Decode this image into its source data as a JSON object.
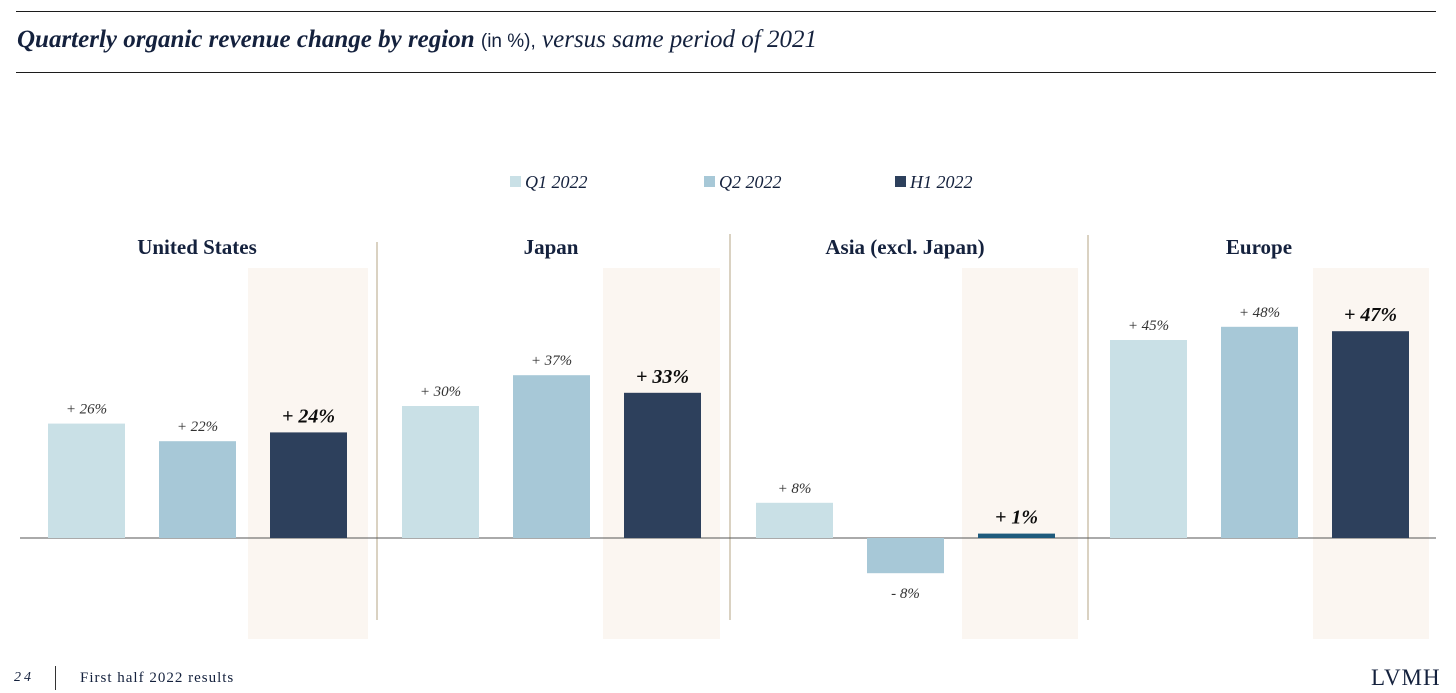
{
  "header": {
    "title_main": "Quarterly organic revenue change by region",
    "title_unit": "(in %),",
    "title_sub": "versus same period of 2021"
  },
  "footer": {
    "page_number": "24",
    "doc_title": "First half 2022 results",
    "brand": "LVMH"
  },
  "colors": {
    "q1": "#c9e0e6",
    "q2": "#a7c8d7",
    "h1": "#2d405c",
    "h1_small": "#1e5a7c",
    "highlight": "#fbf6f1",
    "divider": "#cdc3ae",
    "baseline": "#555555"
  },
  "chart_data": {
    "type": "bar",
    "series": [
      {
        "name": "Q1 2022",
        "key": "q1"
      },
      {
        "name": "Q2 2022",
        "key": "q2"
      },
      {
        "name": "H1 2022",
        "key": "h1"
      }
    ],
    "categories": [
      "United States",
      "Japan",
      "Asia (excl. Japan)",
      "Europe"
    ],
    "groups": [
      {
        "region": "United States",
        "values": [
          26,
          22,
          24
        ],
        "labels": [
          "+ 26%",
          "+ 22%",
          "+ 24%"
        ]
      },
      {
        "region": "Japan",
        "values": [
          30,
          37,
          33
        ],
        "labels": [
          "+ 30%",
          "+ 37%",
          "+ 33%"
        ]
      },
      {
        "region": "Asia (excl. Japan)",
        "values": [
          8,
          -8,
          1
        ],
        "labels": [
          "+ 8%",
          "- 8%",
          "+ 1%"
        ]
      },
      {
        "region": "Europe",
        "values": [
          45,
          48,
          47
        ],
        "labels": [
          "+ 45%",
          "+ 48%",
          "+ 47%"
        ]
      }
    ],
    "legend_position": "top-center",
    "grid": false
  }
}
